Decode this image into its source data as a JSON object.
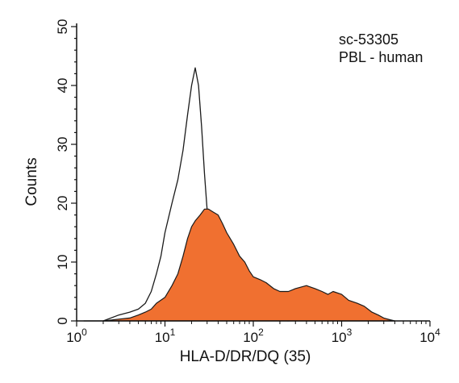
{
  "chart_data": {
    "type": "area",
    "xscale": "log",
    "xlim": [
      1,
      10000
    ],
    "ylim": [
      0,
      50
    ],
    "grid": false,
    "ylabel": "Counts",
    "xlabel": "HLA-D/DR/DQ (35)",
    "yticks": [
      "0",
      "10",
      "20",
      "30",
      "40",
      "50"
    ],
    "xticks": [
      {
        "base": "10",
        "exp": "0"
      },
      {
        "base": "10",
        "exp": "1"
      },
      {
        "base": "10",
        "exp": "2"
      },
      {
        "base": "10",
        "exp": "3"
      },
      {
        "base": "10",
        "exp": "4"
      }
    ],
    "annotations": [
      "sc-53305",
      "PBL - human"
    ],
    "colors": {
      "filled": "#f07030",
      "outline": "#1a1a1a",
      "axis": "#111111"
    },
    "series": [
      {
        "style": "outline",
        "x": [
          1.2,
          2,
          3,
          4,
          5,
          6,
          7,
          8,
          9,
          10,
          12,
          14,
          16,
          18,
          20,
          22,
          24,
          26,
          28,
          30,
          33,
          36,
          40,
          45,
          50,
          60,
          70,
          80,
          100,
          130,
          170,
          250
        ],
        "y": [
          0,
          0,
          1,
          1.5,
          2,
          3,
          5,
          8,
          11,
          15,
          20,
          24,
          29,
          35,
          40,
          43,
          40,
          33,
          25,
          19,
          14,
          10,
          7,
          5,
          3.5,
          2.5,
          2,
          1.5,
          1,
          0.5,
          0.2,
          0
        ]
      },
      {
        "style": "filled",
        "x": [
          2,
          3,
          4,
          5,
          6,
          7,
          8,
          10,
          12,
          14,
          16,
          18,
          20,
          22,
          25,
          28,
          31,
          35,
          40,
          45,
          50,
          60,
          70,
          80,
          90,
          100,
          120,
          140,
          170,
          200,
          250,
          300,
          400,
          500,
          600,
          700,
          800,
          1000,
          1200,
          1500,
          1800,
          2200,
          2600,
          3000,
          3500,
          4000
        ],
        "y": [
          0,
          0.3,
          0.5,
          1,
          1.5,
          2,
          3,
          4,
          6,
          8,
          11,
          14,
          16,
          17,
          18,
          19,
          19,
          18.5,
          18,
          16.5,
          15,
          13,
          11,
          10,
          8.5,
          7.5,
          7,
          6.5,
          5.5,
          5,
          5,
          5.5,
          6,
          5.5,
          5,
          4.5,
          5,
          4.5,
          3.5,
          3,
          2.5,
          1.5,
          1,
          0.5,
          0.2,
          0
        ]
      }
    ]
  }
}
